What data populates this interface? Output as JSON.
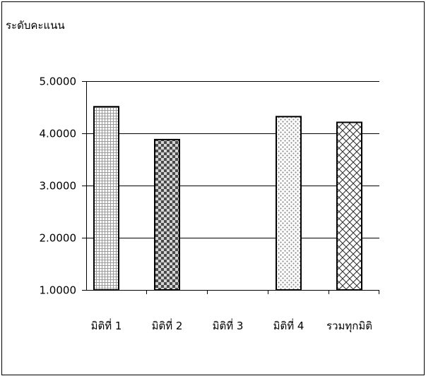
{
  "chart_data": {
    "type": "bar",
    "categories": [
      "มิติที่ 1",
      "มิติที่ 2",
      "มิติที่ 3",
      "มิติที่ 4",
      "รวมทุกมิติ"
    ],
    "values": [
      4.51,
      3.88,
      null,
      4.32,
      4.21
    ],
    "ylabel": "ระดับคะแนน",
    "ylim": [
      1,
      5
    ],
    "yticks": [
      1,
      2,
      3,
      4,
      5
    ],
    "ytick_labels": [
      "1.0000",
      "2.0000",
      "3.0000",
      "4.0000",
      "5.0000"
    ],
    "grid": true,
    "legend": "none"
  }
}
